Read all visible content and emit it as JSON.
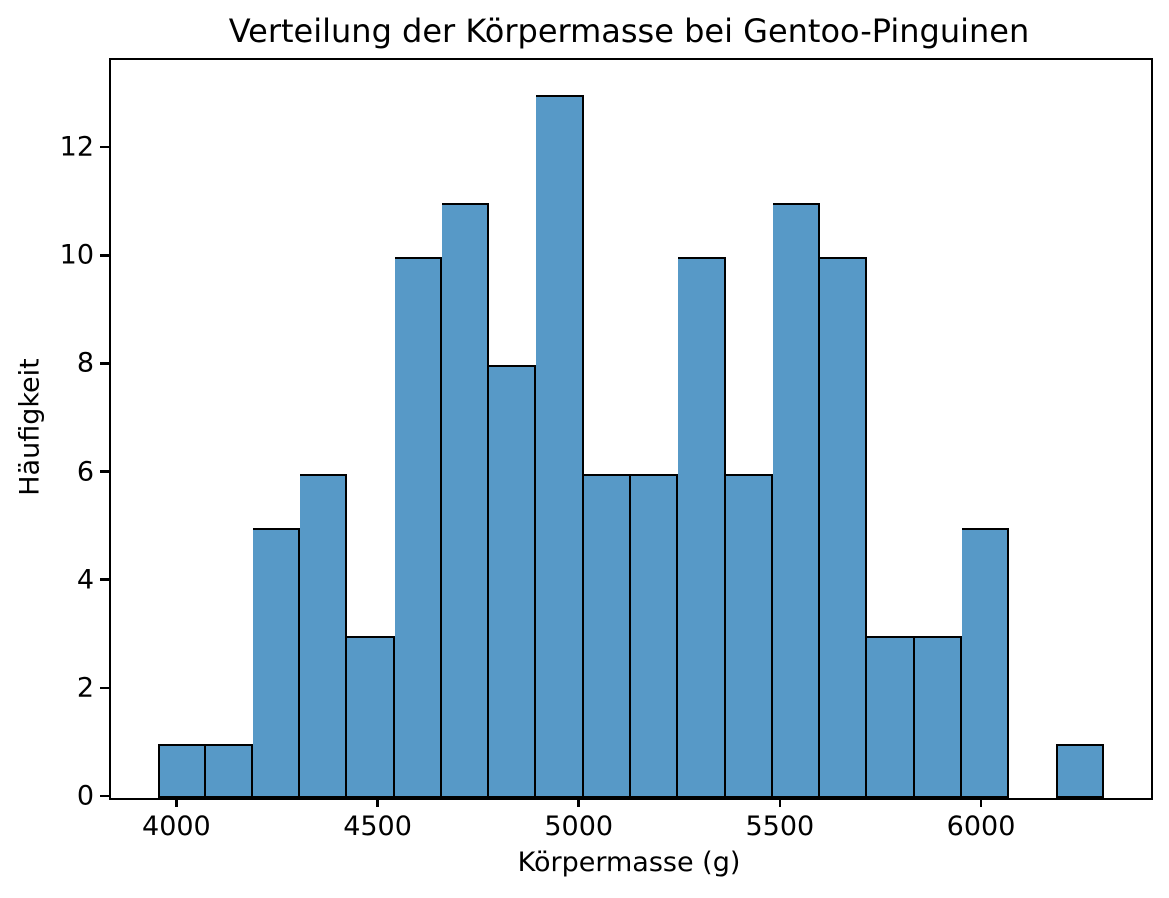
{
  "chart_data": {
    "type": "bar",
    "subtype": "histogram",
    "title": "Verteilung der Körpermasse bei Gentoo-Pinguinen",
    "xlabel": "Körpermasse (g)",
    "ylabel": "Häufigkeit",
    "bin_start": 3950,
    "bin_width": 117.5,
    "bin_edges": [
      3950,
      4067.5,
      4185,
      4302.5,
      4420,
      4537.5,
      4655,
      4772.5,
      4890,
      5007.5,
      5125,
      5242.5,
      5360,
      5477.5,
      5595,
      5712.5,
      5830,
      5947.5,
      6065,
      6182.5,
      6300
    ],
    "values": [
      1,
      1,
      5,
      6,
      3,
      10,
      11,
      8,
      13,
      6,
      6,
      10,
      6,
      11,
      10,
      3,
      3,
      5,
      0,
      1
    ],
    "x_ticks": [
      4000,
      4500,
      5000,
      5500,
      6000
    ],
    "y_ticks": [
      0,
      2,
      4,
      6,
      8,
      10,
      12
    ],
    "xlim": [
      3832.5,
      6417.5
    ],
    "ylim": [
      0,
      13.65
    ],
    "grid": false,
    "legend": null,
    "bar_color": "#5799C7",
    "bar_edge_color": "#000000",
    "axis_color": "#000000",
    "text_color": "#000000"
  }
}
